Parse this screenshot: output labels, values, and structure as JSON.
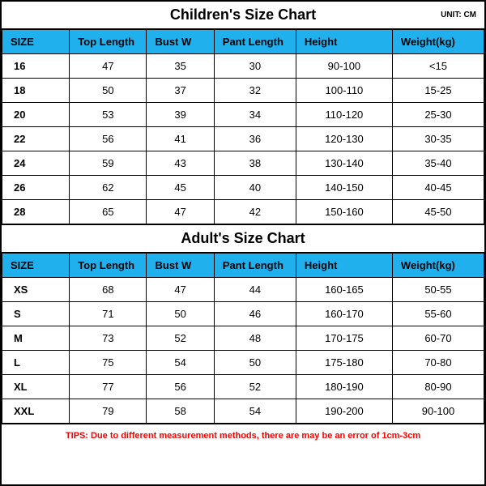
{
  "children_chart": {
    "title": "Children's Size Chart",
    "unit": "UNIT: CM",
    "columns": [
      "SIZE",
      "Top Length",
      "Bust W",
      "Pant Length",
      "Height",
      "Weight(kg)"
    ],
    "column_widths": [
      "14%",
      "16%",
      "14%",
      "17%",
      "20%",
      "19%"
    ],
    "header_bg": "#1fb0ed",
    "rows": [
      [
        "16",
        "47",
        "35",
        "30",
        "90-100",
        "<15"
      ],
      [
        "18",
        "50",
        "37",
        "32",
        "100-110",
        "15-25"
      ],
      [
        "20",
        "53",
        "39",
        "34",
        "110-120",
        "25-30"
      ],
      [
        "22",
        "56",
        "41",
        "36",
        "120-130",
        "30-35"
      ],
      [
        "24",
        "59",
        "43",
        "38",
        "130-140",
        "35-40"
      ],
      [
        "26",
        "62",
        "45",
        "40",
        "140-150",
        "40-45"
      ],
      [
        "28",
        "65",
        "47",
        "42",
        "150-160",
        "45-50"
      ]
    ]
  },
  "adult_chart": {
    "title": "Adult's Size Chart",
    "columns": [
      "SIZE",
      "Top Length",
      "Bust W",
      "Pant Length",
      "Height",
      "Weight(kg)"
    ],
    "column_widths": [
      "14%",
      "16%",
      "14%",
      "17%",
      "20%",
      "19%"
    ],
    "header_bg": "#1fb0ed",
    "rows": [
      [
        "XS",
        "68",
        "47",
        "44",
        "160-165",
        "50-55"
      ],
      [
        "S",
        "71",
        "50",
        "46",
        "160-170",
        "55-60"
      ],
      [
        "M",
        "73",
        "52",
        "48",
        "170-175",
        "60-70"
      ],
      [
        "L",
        "75",
        "54",
        "50",
        "175-180",
        "70-80"
      ],
      [
        "XL",
        "77",
        "56",
        "52",
        "180-190",
        "80-90"
      ],
      [
        "XXL",
        "79",
        "58",
        "54",
        "190-200",
        "90-100"
      ]
    ]
  },
  "tips": "TIPS: Due to different measurement methods, there are may be an error of 1cm-3cm",
  "colors": {
    "border": "#000000",
    "background": "#ffffff",
    "tips_color": "#ff0000"
  }
}
